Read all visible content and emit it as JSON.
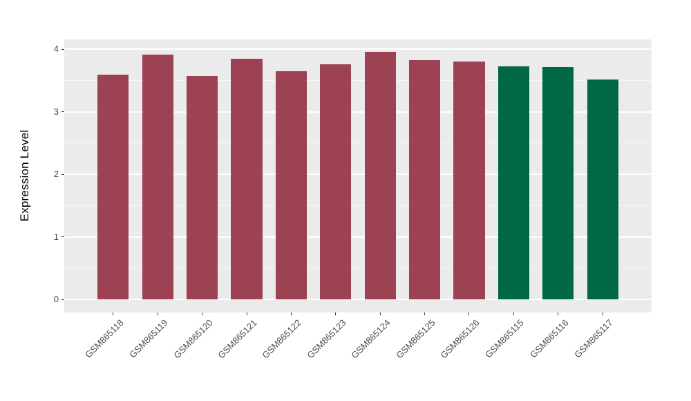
{
  "figure": {
    "background": "#FFFFFF",
    "panel_background": "#EBEBEB",
    "gridline_color": "#FFFFFF",
    "tick_mark_color": "#333333",
    "axis_text_color": "#4D4D4D",
    "axis_title_color": "#000000"
  },
  "chart_data": {
    "type": "bar",
    "title": "",
    "xlabel": "",
    "ylabel": "Expression Level",
    "categories": [
      "GSM865118",
      "GSM865119",
      "GSM865120",
      "GSM865121",
      "GSM865122",
      "GSM865123",
      "GSM865124",
      "GSM865125",
      "GSM865126",
      "GSM865115",
      "GSM865116",
      "GSM865117"
    ],
    "values": [
      3.59,
      3.91,
      3.57,
      3.84,
      3.65,
      3.76,
      3.96,
      3.82,
      3.8,
      3.72,
      3.71,
      3.51
    ],
    "bar_colors": [
      "#9C4252",
      "#9C4252",
      "#9C4252",
      "#9C4252",
      "#9C4252",
      "#9C4252",
      "#9C4252",
      "#9C4252",
      "#9C4252",
      "#006847",
      "#006847",
      "#006847"
    ],
    "group_palette": {
      "maroon_group": "#9C4252",
      "green_group": "#006847"
    },
    "yticks": [
      0,
      1,
      2,
      3,
      4
    ],
    "ytick_labels": [
      "0",
      "1",
      "2",
      "3",
      "4"
    ],
    "minor_yticks": [
      0.5,
      1.5,
      2.5,
      3.5
    ],
    "ylim": [
      -0.21,
      4.16
    ],
    "grid": "major-and-minor",
    "legend_position": "none",
    "x_label_angle_deg": 45
  }
}
